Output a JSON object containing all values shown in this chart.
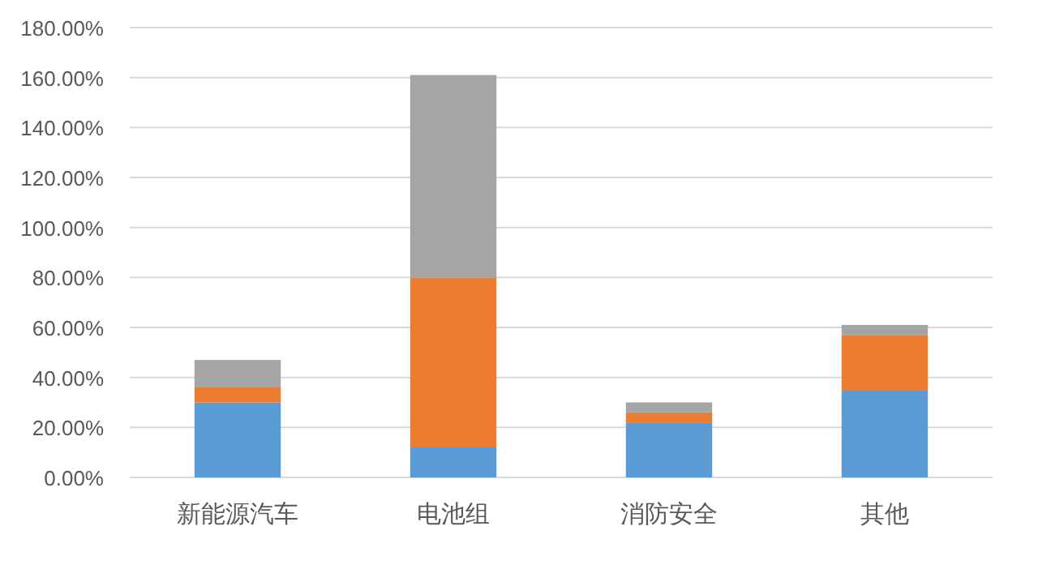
{
  "chart_data": {
    "type": "bar",
    "stacked": true,
    "grid": "y",
    "categories": [
      "新能源汽车",
      "电池组",
      "消防安全",
      "其他"
    ],
    "series": [
      {
        "color": "#5b9bd5",
        "values": [
          30,
          12,
          22,
          35
        ]
      },
      {
        "color": "#ed7d31",
        "values": [
          6,
          68,
          4,
          22
        ]
      },
      {
        "color": "#a5a5a5",
        "values": [
          11,
          81,
          4,
          4
        ]
      }
    ],
    "ylim": [
      0,
      180
    ],
    "yticks": [
      {
        "value": 0,
        "label": "0.00%"
      },
      {
        "value": 20,
        "label": "20.00%"
      },
      {
        "value": 40,
        "label": "40.00%"
      },
      {
        "value": 60,
        "label": "60.00%"
      },
      {
        "value": 80,
        "label": "80.00%"
      },
      {
        "value": 100,
        "label": "100.00%"
      },
      {
        "value": 120,
        "label": "120.00%"
      },
      {
        "value": 140,
        "label": "140.00%"
      },
      {
        "value": 160,
        "label": "160.00%"
      },
      {
        "value": 180,
        "label": "180.00%"
      }
    ]
  }
}
